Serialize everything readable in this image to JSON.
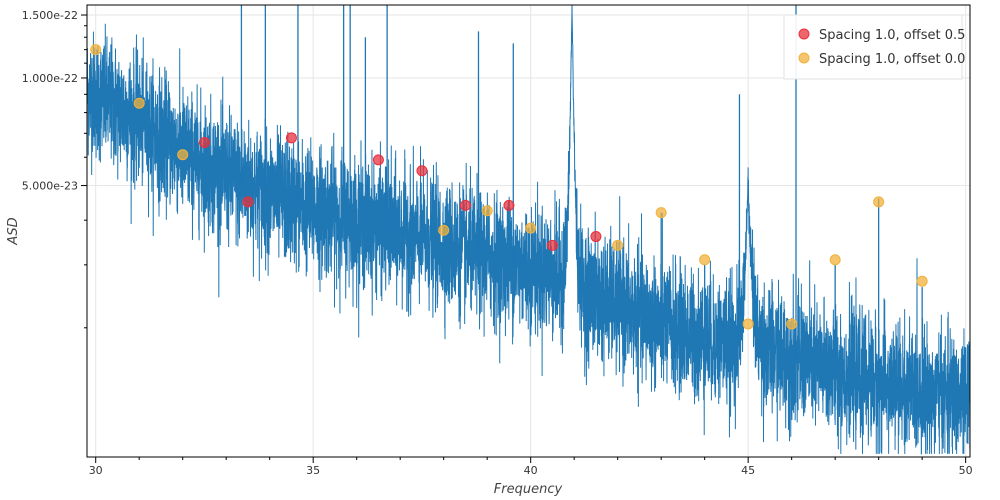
{
  "chart_data": {
    "type": "line",
    "xlabel": "Frequency",
    "ylabel": "ASD",
    "xlim": [
      29.8,
      50.1
    ],
    "ylim": [
      8.7e-24,
      1.6e-22
    ],
    "yscale": "log",
    "grid": true,
    "legend_position": "top-right",
    "x_ticks": [
      {
        "value": 30,
        "label": "30"
      },
      {
        "value": 35,
        "label": "35"
      },
      {
        "value": 40,
        "label": "40"
      },
      {
        "value": 45,
        "label": "45"
      },
      {
        "value": 50,
        "label": "50"
      }
    ],
    "y_ticks": [
      {
        "value": 1.5e-22,
        "label": "1.500e-22"
      },
      {
        "value": 1e-22,
        "label": "1.000e-22"
      },
      {
        "value": 5e-23,
        "label": "5.000e-23"
      }
    ],
    "y_minor_ticks": [
      2e-23,
      3e-23,
      4e-23,
      6e-23,
      7e-23,
      8e-23,
      9e-23,
      1.1e-22,
      1.2e-22,
      1.3e-22,
      1.4e-22
    ],
    "line_series": {
      "color": "#1f77b4",
      "trend": [
        {
          "x": 29.8,
          "y": 9.2e-23
        },
        {
          "x": 31,
          "y": 7.6e-23
        },
        {
          "x": 32,
          "y": 6.2e-23
        },
        {
          "x": 33,
          "y": 5.3e-23
        },
        {
          "x": 34,
          "y": 4.7e-23
        },
        {
          "x": 35,
          "y": 4.3e-23
        },
        {
          "x": 36,
          "y": 4e-23
        },
        {
          "x": 37,
          "y": 3.7e-23
        },
        {
          "x": 38,
          "y": 3.4e-23
        },
        {
          "x": 39,
          "y": 3.15e-23
        },
        {
          "x": 40,
          "y": 2.95e-23
        },
        {
          "x": 40.8,
          "y": 2.75e-23
        },
        {
          "x": 41,
          "y": 2.6e-23
        },
        {
          "x": 42,
          "y": 2.3e-23
        },
        {
          "x": 43,
          "y": 2.05e-23
        },
        {
          "x": 44,
          "y": 1.85e-23
        },
        {
          "x": 44.6,
          "y": 1.8e-23
        },
        {
          "x": 45.1,
          "y": 1.8e-23
        },
        {
          "x": 46,
          "y": 1.65e-23
        },
        {
          "x": 47,
          "y": 1.52e-23
        },
        {
          "x": 48,
          "y": 1.4e-23
        },
        {
          "x": 49,
          "y": 1.32e-23
        },
        {
          "x": 50.1,
          "y": 1.25e-23
        }
      ],
      "bumps": [
        {
          "x": 40.95,
          "y": 1.6e-22,
          "width": 0.13
        },
        {
          "x": 45.0,
          "y": 5.2e-23,
          "width": 0.2
        }
      ],
      "spikes": [
        {
          "x": 33.35,
          "y": 1.6e-22
        },
        {
          "x": 33.9,
          "y": 1.6e-22
        },
        {
          "x": 34.65,
          "y": 1.6e-22
        },
        {
          "x": 35.7,
          "y": 1.6e-22
        },
        {
          "x": 35.85,
          "y": 1.6e-22
        },
        {
          "x": 36.7,
          "y": 1.6e-22
        },
        {
          "x": 36.2,
          "y": 1.3e-22
        },
        {
          "x": 38.8,
          "y": 1.35e-22
        },
        {
          "x": 39.6,
          "y": 1.25e-22
        },
        {
          "x": 46.1,
          "y": 1.6e-22
        },
        {
          "x": 44.8,
          "y": 9e-23
        },
        {
          "x": 43.0,
          "y": 4.2e-23
        },
        {
          "x": 48.0,
          "y": 4.6e-23
        },
        {
          "x": 44.0,
          "y": 3e-23
        },
        {
          "x": 47.0,
          "y": 3e-23
        },
        {
          "x": 49.0,
          "y": 2.6e-23
        }
      ]
    },
    "series": [
      {
        "name": "Spacing 1.0, offset 0.5",
        "type": "scatter",
        "color": "#e8313c",
        "points": [
          {
            "x": 32.5,
            "y": 6.6e-23
          },
          {
            "x": 33.5,
            "y": 4.5e-23
          },
          {
            "x": 34.5,
            "y": 6.8e-23
          },
          {
            "x": 36.5,
            "y": 5.9e-23
          },
          {
            "x": 37.5,
            "y": 5.5e-23
          },
          {
            "x": 38.5,
            "y": 4.4e-23
          },
          {
            "x": 39.5,
            "y": 4.4e-23
          },
          {
            "x": 40.5,
            "y": 3.4e-23
          },
          {
            "x": 41.5,
            "y": 3.6e-23
          }
        ]
      },
      {
        "name": "Spacing 1.0, offset 0.0",
        "type": "scatter",
        "color": "#f0b23c",
        "points": [
          {
            "x": 30,
            "y": 1.2e-22
          },
          {
            "x": 31,
            "y": 8.5e-23
          },
          {
            "x": 32,
            "y": 6.1e-23
          },
          {
            "x": 38,
            "y": 3.75e-23
          },
          {
            "x": 39,
            "y": 4.25e-23
          },
          {
            "x": 40,
            "y": 3.8e-23
          },
          {
            "x": 42,
            "y": 3.4e-23
          },
          {
            "x": 43,
            "y": 4.2e-23
          },
          {
            "x": 44,
            "y": 3.1e-23
          },
          {
            "x": 45,
            "y": 2.05e-23
          },
          {
            "x": 46,
            "y": 2.05e-23
          },
          {
            "x": 47,
            "y": 3.1e-23
          },
          {
            "x": 48,
            "y": 4.5e-23
          },
          {
            "x": 49,
            "y": 2.7e-23
          }
        ]
      }
    ]
  }
}
